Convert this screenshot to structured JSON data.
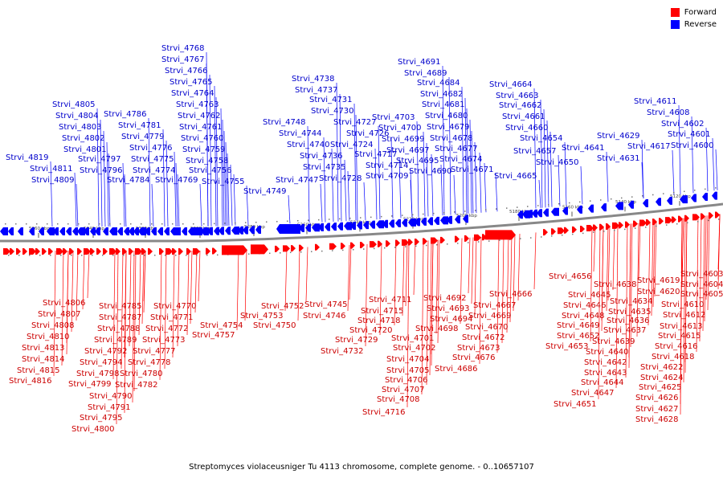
{
  "legend": [
    {
      "label": "Forward",
      "color": "#ff0000"
    },
    {
      "label": "Reverse",
      "color": "#0000ff"
    }
  ],
  "caption": "Streptomyces violaceusniger Tu 4113 chromosome, complete genome. - 0..10657107",
  "colors": {
    "forward": "#ff0000",
    "forward_label": "#cc0000",
    "reverse": "#0000ff",
    "reverse_label": "#0000cc",
    "backbone": "#888888"
  },
  "kbp_ticks": [
    "5360 kbp",
    "5340 kbp",
    "5320 kbp",
    "5300 kbp",
    "5280 kbp",
    "5260 kbp",
    "5240 kbp",
    "5220 kbp",
    "5200 kbp",
    "5180 kbp",
    "5160 kbp",
    "5140 kbp",
    "5120 kbp"
  ],
  "reverse_genes": [
    "Strvi_4819",
    "Strvi_4811",
    "Strvi_4809",
    "Strvi_4805",
    "Strvi_4804",
    "Strvi_4803",
    "Strvi_4802",
    "Strvi_4801",
    "Strvi_4797",
    "Strvi_4796",
    "Strvi_4786",
    "Strvi_4781",
    "Strvi_4779",
    "Strvi_4776",
    "Strvi_4775",
    "Strvi_4784",
    "Strvi_4774",
    "Strvi_4769",
    "Strvi_4768",
    "Strvi_4767",
    "Strvi_4766",
    "Strvi_4765",
    "Strvi_4764",
    "Strvi_4763",
    "Strvi_4762",
    "Strvi_4761",
    "Strvi_4760",
    "Strvi_4759",
    "Strvi_4758",
    "Strvi_4756",
    "Strvi_4755",
    "Strvi_4749",
    "Strvi_4748",
    "Strvi_4747",
    "Strvi_4744",
    "Strvi_4740",
    "Strvi_4738",
    "Strvi_4737",
    "Strvi_4736",
    "Strvi_4735",
    "Strvi_4731",
    "Strvi_4730",
    "Strvi_4728",
    "Strvi_4727",
    "Strvi_4726",
    "Strvi_4724",
    "Strvi_4717",
    "Strvi_4714",
    "Strvi_4709",
    "Strvi_4703",
    "Strvi_4700",
    "Strvi_4699",
    "Strvi_4697",
    "Strvi_4695",
    "Strvi_4690",
    "Strvi_4691",
    "Strvi_4689",
    "Strvi_4684",
    "Strvi_4682",
    "Strvi_4681",
    "Strvi_4680",
    "Strvi_4679",
    "Strvi_4678",
    "Strvi_4677",
    "Strvi_4674",
    "Strvi_4671",
    "Strvi_4664",
    "Strvi_4663",
    "Strvi_4662",
    "Strvi_4661",
    "Strvi_4660",
    "Strvi_4654",
    "Strvi_4657",
    "Strvi_4650",
    "Strvi_4665",
    "Strvi_4641",
    "Strvi_4629",
    "Strvi_4631",
    "Strvi_4611",
    "Strvi_4608",
    "Strvi_4602",
    "Strvi_4617",
    "Strvi_4601",
    "Strvi_4600"
  ],
  "forward_genes": [
    "Strvi_4806",
    "Strvi_4807",
    "Strvi_4808",
    "Strvi_4810",
    "Strvi_4813",
    "Strvi_4814",
    "Strvi_4815",
    "Strvi_4816",
    "Strvi_4785",
    "Strvi_4787",
    "Strvi_4788",
    "Strvi_4789",
    "Strvi_4792",
    "Strvi_4794",
    "Strvi_4798",
    "Strvi_4799",
    "Strvi_4790",
    "Strvi_4791",
    "Strvi_4795",
    "Strvi_4800",
    "Strvi_4770",
    "Strvi_4771",
    "Strvi_4772",
    "Strvi_4773",
    "Strvi_4777",
    "Strvi_4778",
    "Strvi_4780",
    "Strvi_4782",
    "Strvi_4753",
    "Strvi_4754",
    "Strvi_4757",
    "Strvi_4752",
    "Strvi_4750",
    "Strvi_4745",
    "Strvi_4746",
    "Strvi_4729",
    "Strvi_4732",
    "Strvi_4711",
    "Strvi_4715",
    "Strvi_4718",
    "Strvi_4720",
    "Strvi_4701",
    "Strvi_4702",
    "Strvi_4704",
    "Strvi_4705",
    "Strvi_4706",
    "Strvi_4707",
    "Strvi_4708",
    "Strvi_4716",
    "Strvi_4692",
    "Strvi_4693",
    "Strvi_4694",
    "Strvi_4698",
    "Strvi_4686",
    "Strvi_4666",
    "Strvi_4667",
    "Strvi_4669",
    "Strvi_4670",
    "Strvi_4672",
    "Strvi_4673",
    "Strvi_4676",
    "Strvi_4656",
    "Strvi_4645",
    "Strvi_4646",
    "Strvi_4648",
    "Strvi_4649",
    "Strvi_4652",
    "Strvi_4653",
    "Strvi_4638",
    "Strvi_4634",
    "Strvi_4635",
    "Strvi_4636",
    "Strvi_4637",
    "Strvi_4639",
    "Strvi_4640",
    "Strvi_4642",
    "Strvi_4643",
    "Strvi_4644",
    "Strvi_4647",
    "Strvi_4651",
    "Strvi_4619",
    "Strvi_4620",
    "Strvi_4603",
    "Strvi_4604",
    "Strvi_4605",
    "Strvi_4610",
    "Strvi_4612",
    "Strvi_4613",
    "Strvi_4615",
    "Strvi_4616",
    "Strvi_4618",
    "Strvi_4622",
    "Strvi_4624",
    "Strvi_4625",
    "Strvi_4626",
    "Strvi_4627",
    "Strvi_4628"
  ]
}
